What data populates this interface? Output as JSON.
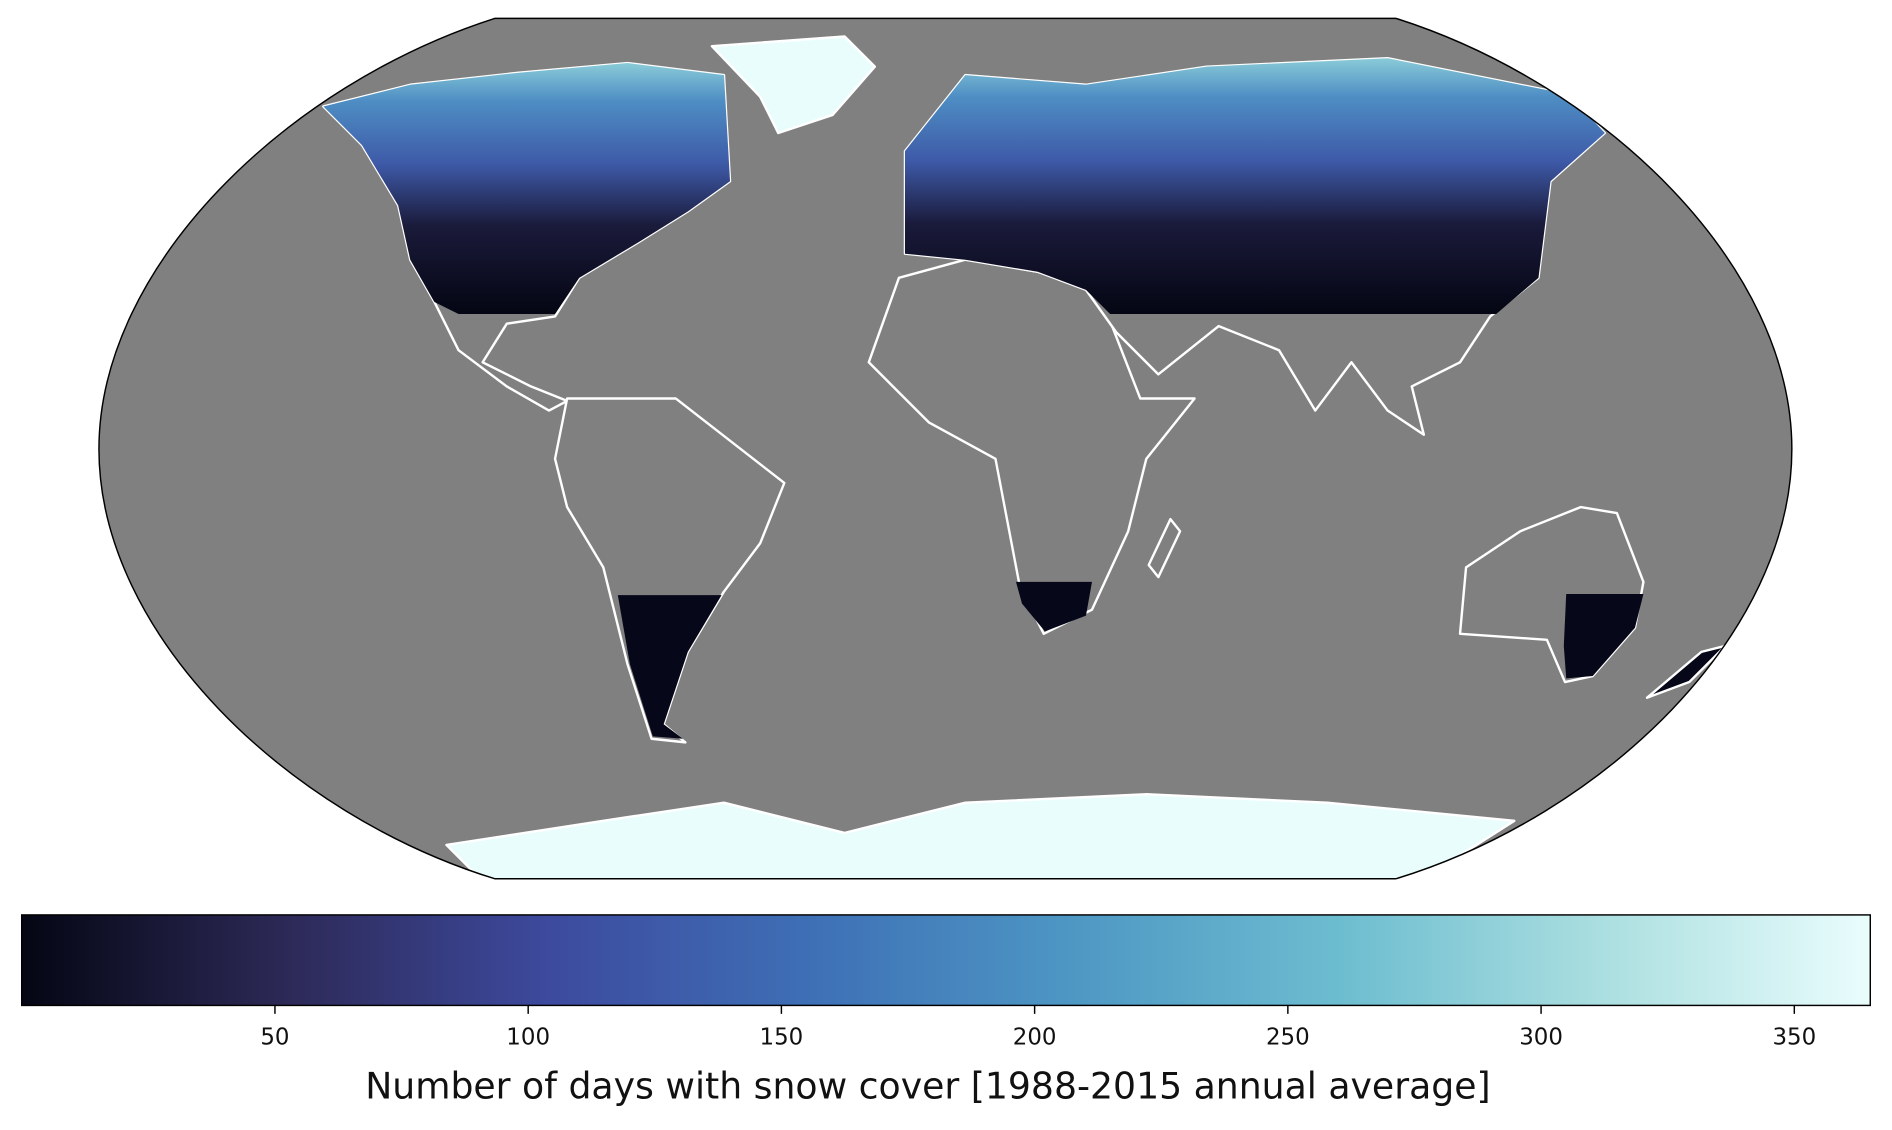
{
  "colorbar": {
    "label": "Number of days with snow cover [1988-2015 annual average]",
    "lim": [
      0,
      365
    ],
    "ticks": [
      50,
      100,
      150,
      200,
      250,
      300,
      350
    ],
    "colors": [
      "#040613",
      "#2d2957",
      "#3d4a9e",
      "#3e70b6",
      "#4e98c4",
      "#6dbdd0",
      "#acdfe0",
      "#eafdfd"
    ]
  }
}
